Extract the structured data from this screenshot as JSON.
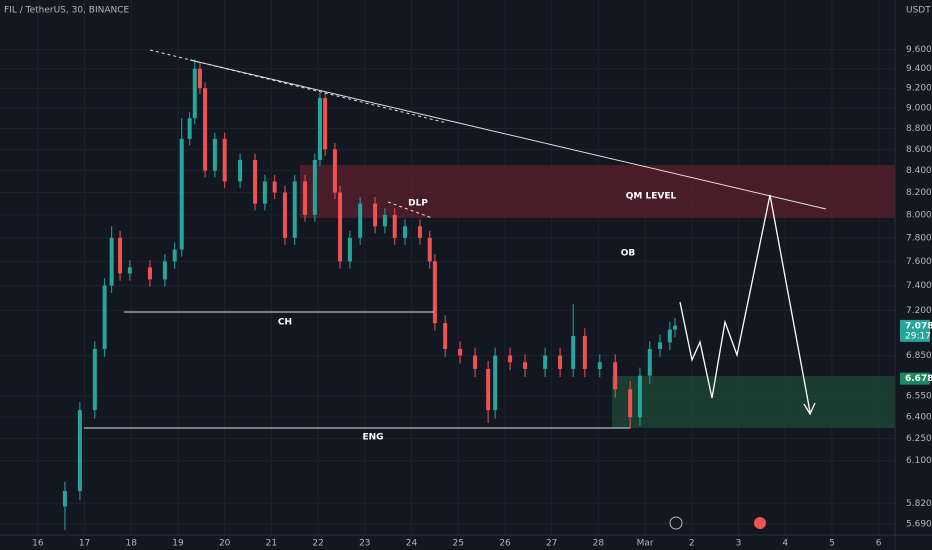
{
  "chart_data": {
    "type": "candlestick",
    "title": "FIL / TetherUS, 30, BINANCE",
    "y_axis_label": "USDT",
    "log_scale": true,
    "grid": true,
    "up_color": "#26a69a",
    "down_color": "#ef5350",
    "xlim": [
      -0.81,
      18.35
    ],
    "ylim": [
      5.62,
      10.14
    ],
    "xticks": [
      {
        "value": 0,
        "label": "16"
      },
      {
        "value": 1,
        "label": "17"
      },
      {
        "value": 2,
        "label": "18"
      },
      {
        "value": 3,
        "label": "19"
      },
      {
        "value": 4,
        "label": "20"
      },
      {
        "value": 5,
        "label": "21"
      },
      {
        "value": 6,
        "label": "22"
      },
      {
        "value": 7,
        "label": "23"
      },
      {
        "value": 8,
        "label": "24"
      },
      {
        "value": 9,
        "label": "25"
      },
      {
        "value": 10,
        "label": "26"
      },
      {
        "value": 11,
        "label": "27"
      },
      {
        "value": 12,
        "label": "28"
      },
      {
        "value": 13,
        "label": "Mar"
      },
      {
        "value": 14,
        "label": "2"
      },
      {
        "value": 15,
        "label": "3"
      },
      {
        "value": 16,
        "label": "4"
      },
      {
        "value": 17,
        "label": "5"
      },
      {
        "value": 18,
        "label": "6"
      }
    ],
    "yticks": [
      {
        "value": 9.6,
        "label": "9.600"
      },
      {
        "value": 9.4,
        "label": "9.400"
      },
      {
        "value": 9.2,
        "label": "9.200"
      },
      {
        "value": 9.0,
        "label": "9.000"
      },
      {
        "value": 8.8,
        "label": "8.800"
      },
      {
        "value": 8.6,
        "label": "8.600"
      },
      {
        "value": 8.4,
        "label": "8.400"
      },
      {
        "value": 8.2,
        "label": "8.200"
      },
      {
        "value": 8.0,
        "label": "8.000"
      },
      {
        "value": 7.8,
        "label": "7.800"
      },
      {
        "value": 7.6,
        "label": "7.600"
      },
      {
        "value": 7.4,
        "label": "7.400"
      },
      {
        "value": 7.2,
        "label": "7.200"
      },
      {
        "value": 6.85,
        "label": "6.850"
      },
      {
        "value": 6.55,
        "label": "6.550"
      },
      {
        "value": 6.4,
        "label": "6.400"
      },
      {
        "value": 6.25,
        "label": "6.250"
      },
      {
        "value": 6.1,
        "label": "6.100"
      },
      {
        "value": 5.82,
        "label": "5.820"
      },
      {
        "value": 5.69,
        "label": "5.690"
      }
    ],
    "x": [
      0.58,
      0.9,
      1.22,
      1.43,
      1.58,
      1.76,
      1.97,
      2.4,
      2.72,
      2.93,
      3.08,
      3.25,
      3.36,
      3.47,
      3.58,
      3.79,
      4.0,
      4.33,
      4.65,
      4.86,
      5.07,
      5.29,
      5.5,
      5.72,
      5.93,
      6.04,
      6.15,
      6.36,
      6.47,
      6.68,
      6.9,
      7.22,
      7.43,
      7.64,
      7.86,
      8.18,
      8.39,
      8.5,
      8.72,
      9.04,
      9.36,
      9.64,
      9.79,
      10.11,
      10.43,
      10.86,
      11.18,
      11.46,
      11.71,
      12.03,
      12.36,
      12.68,
      12.89,
      13.1,
      13.32,
      13.53,
      13.64
    ],
    "open": [
      5.8,
      5.9,
      6.45,
      6.9,
      7.4,
      7.8,
      7.5,
      7.55,
      7.45,
      7.6,
      7.7,
      8.7,
      8.9,
      9.4,
      9.2,
      8.4,
      8.7,
      8.3,
      8.5,
      8.1,
      8.3,
      8.2,
      7.8,
      8.3,
      8.0,
      8.5,
      9.1,
      8.6,
      8.2,
      7.6,
      7.8,
      8.1,
      7.9,
      8.0,
      7.8,
      7.9,
      7.8,
      7.6,
      7.1,
      6.9,
      6.85,
      6.75,
      6.45,
      6.85,
      6.8,
      6.75,
      6.85,
      6.75,
      7.0,
      6.75,
      6.8,
      6.6,
      6.4,
      6.7,
      6.9,
      6.95,
      7.05
    ],
    "high": [
      5.96,
      6.51,
      6.96,
      7.46,
      7.9,
      7.86,
      7.61,
      7.61,
      7.66,
      7.76,
      8.9,
      8.96,
      9.5,
      9.46,
      9.26,
      8.76,
      8.76,
      8.56,
      8.56,
      8.36,
      8.36,
      8.26,
      8.36,
      8.36,
      8.56,
      9.15,
      9.16,
      8.66,
      8.26,
      7.86,
      8.16,
      8.16,
      8.06,
      8.06,
      7.96,
      7.96,
      7.86,
      7.66,
      7.16,
      6.96,
      6.91,
      6.81,
      6.91,
      6.91,
      6.86,
      6.91,
      6.91,
      7.25,
      7.06,
      6.86,
      6.86,
      6.66,
      6.76,
      6.96,
      7.01,
      7.11,
      7.14
    ],
    "low": [
      5.65,
      5.84,
      6.39,
      6.84,
      7.34,
      7.44,
      7.44,
      7.39,
      7.39,
      7.54,
      7.64,
      8.64,
      8.84,
      9.14,
      8.34,
      8.34,
      8.24,
      8.24,
      8.04,
      8.04,
      8.14,
      7.74,
      7.74,
      7.94,
      7.94,
      8.44,
      8.54,
      8.14,
      7.54,
      7.54,
      7.74,
      7.84,
      7.84,
      7.74,
      7.74,
      7.74,
      7.54,
      7.04,
      6.84,
      6.79,
      6.69,
      6.36,
      6.39,
      6.74,
      6.69,
      6.69,
      6.69,
      6.69,
      6.69,
      6.69,
      6.54,
      6.32,
      6.34,
      6.64,
      6.84,
      6.89,
      6.99
    ],
    "close": [
      5.9,
      6.45,
      6.9,
      7.4,
      7.8,
      7.5,
      7.55,
      7.45,
      7.6,
      7.7,
      8.7,
      8.9,
      9.4,
      9.2,
      8.4,
      8.7,
      8.3,
      8.5,
      8.1,
      8.3,
      8.2,
      7.8,
      8.3,
      8.0,
      8.5,
      9.1,
      8.6,
      8.2,
      7.6,
      7.8,
      8.1,
      7.9,
      8.0,
      7.8,
      7.9,
      7.8,
      7.6,
      7.1,
      6.9,
      6.85,
      6.75,
      6.45,
      6.85,
      6.8,
      6.75,
      6.85,
      6.75,
      7.0,
      6.75,
      6.8,
      6.6,
      6.4,
      6.7,
      6.9,
      6.95,
      7.05,
      7.08
    ],
    "price_marks": [
      7.078,
      6.678
    ],
    "countdown": "29:17",
    "annotations": [
      "QM LEVEL",
      "DLP",
      "OB",
      "CH",
      "ENG"
    ]
  }
}
